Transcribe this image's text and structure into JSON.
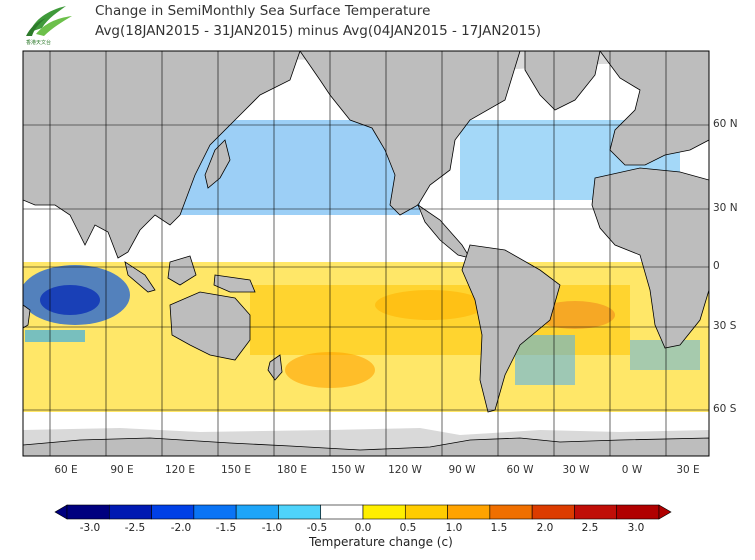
{
  "header": {
    "title_line1": "Change in SemiMonthly Sea Surface Temperature",
    "title_line2": "Avg(18JAN2015 - 31JAN2015) minus Avg(04JAN2015 - 17JAN2015)",
    "logo_caption": "香港天文台"
  },
  "map": {
    "longitude_ticks": [
      "60 E",
      "90 E",
      "120 E",
      "150 E",
      "180 E",
      "150 W",
      "120 W",
      "90 W",
      "60 W",
      "30 W",
      "0 W",
      "30 E"
    ],
    "latitude_ticks": [
      "60 N",
      "30 N",
      "0",
      "30 S",
      "60 S"
    ]
  },
  "colorbar": {
    "title": "Temperature change  (c)",
    "tick_labels": [
      "-3.0",
      "-2.5",
      "-2.0",
      "-1.5",
      "-1.0",
      "-0.5",
      "0.0",
      "0.5",
      "1.0",
      "1.5",
      "2.0",
      "2.5",
      "3.0"
    ],
    "colors": [
      "#00007f",
      "#0019b2",
      "#0040e6",
      "#0a74f5",
      "#1ea5f8",
      "#4ed3fb",
      "#ffffff",
      "#ffef00",
      "#ffcc00",
      "#ffa300",
      "#f06f00",
      "#dc3c00",
      "#c00e08",
      "#b00000"
    ]
  },
  "palette": {
    "land": "#bdbdbd",
    "ice": "#d9d9d9",
    "ocean_neutral": "#ffffff",
    "grid": "#000000"
  }
}
